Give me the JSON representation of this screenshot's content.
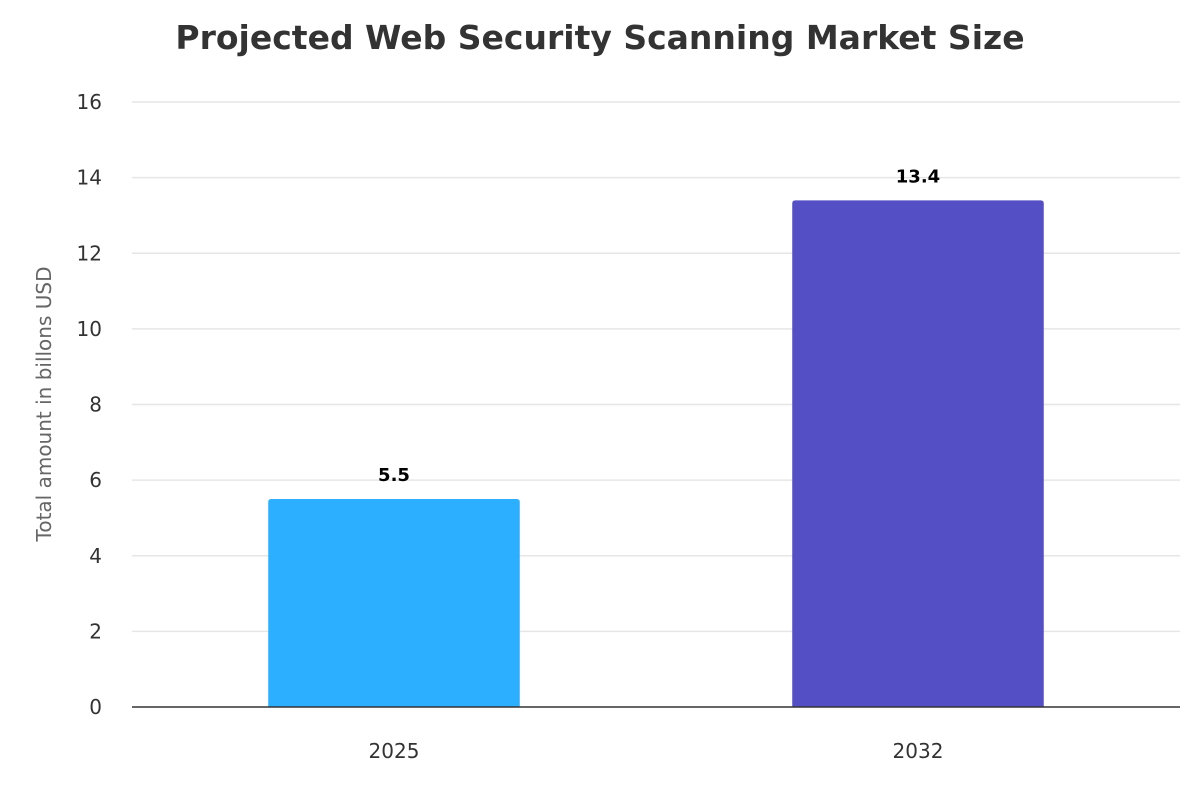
{
  "chart_data": {
    "type": "bar",
    "title": "Projected Web Security Scanning Market Size",
    "xlabel": "",
    "ylabel": "Total amount in billons USD",
    "categories": [
      "2025",
      "2032"
    ],
    "values": [
      5.5,
      13.4
    ],
    "data_labels": [
      "5.5",
      "13.4"
    ],
    "colors": [
      "#2CAFFE",
      "#544FC5"
    ],
    "ylim": [
      0,
      16
    ],
    "yticks": [
      0,
      2,
      4,
      6,
      8,
      10,
      12,
      14,
      16
    ],
    "grid": true,
    "legend": "none"
  }
}
